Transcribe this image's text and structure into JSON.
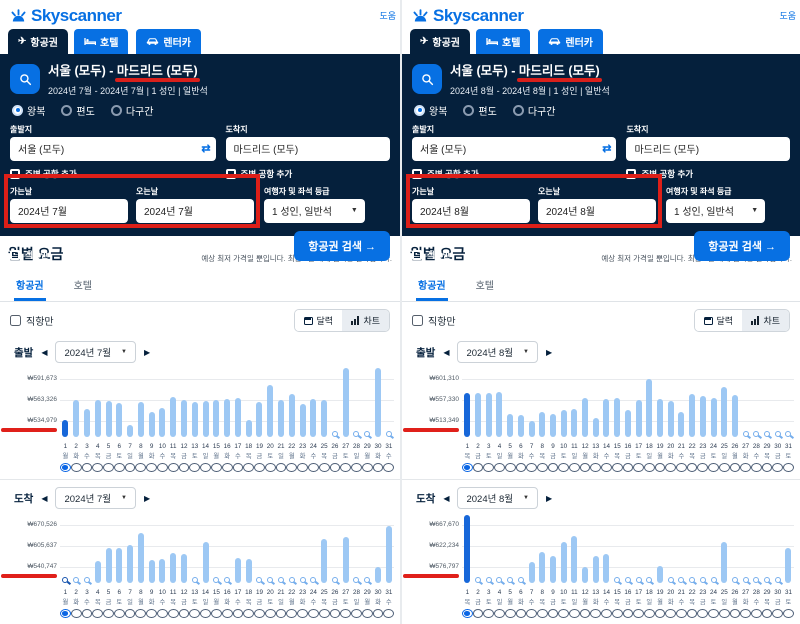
{
  "colors": {
    "brand_blue": "#0770e3",
    "navy": "#05203c",
    "bar_light": "#9dc8f4",
    "bar_selected": "#1767d9",
    "annotation_red": "#dd1f18"
  },
  "panels": [
    {
      "logo_text": "Skyscanner",
      "help_link": "도움",
      "nav_tabs": [
        {
          "label": "항공권"
        },
        {
          "label": "호텔"
        },
        {
          "label": "렌터카"
        }
      ],
      "summary_route_prefix": "서울 (모두) - ",
      "summary_route_highlight": "마드리드 (모두)",
      "summary_details": "2024년 7월 - 2024년 7월 | 1 성인 | 일반석",
      "trip_types": [
        "왕복",
        "편도",
        "다구간"
      ],
      "origin_label": "출발지",
      "origin_value": "서울 (모두)",
      "dest_label": "도착지",
      "dest_value": "마드리드 (모두)",
      "nearby_airports_label": "주변 공항 추가",
      "depart_label": "가는날",
      "depart_value": "2024년 7월",
      "return_label": "오는날",
      "return_value": "2024년 7월",
      "traveler_label": "여행자 및 좌석 등급",
      "traveler_value": "1 성인, 일반석",
      "direct_only_label": "직항만",
      "search_button_label": "항공권 검색 →",
      "monthly_title": "월별 요금",
      "monthly_subtitle": "예상 최저 가격일 뿐입니다. 최근 4일 내에 검색한 결과입니다.",
      "monthly_tabs": [
        "항공권",
        "호텔"
      ],
      "calendar_button_label": "달력",
      "chart_button_label": "차트"
    },
    {
      "logo_text": "Skyscanner",
      "help_link": "도움",
      "nav_tabs": [
        {
          "label": "항공권"
        },
        {
          "label": "호텔"
        },
        {
          "label": "렌터카"
        }
      ],
      "summary_route_prefix": "서울 (모두) - ",
      "summary_route_highlight": "마드리드 (모두)",
      "summary_details": "2024년 8월 - 2024년 8월 | 1 성인 | 일반석",
      "trip_types": [
        "왕복",
        "편도",
        "다구간"
      ],
      "origin_label": "출발지",
      "origin_value": "서울 (모두)",
      "dest_label": "도착지",
      "dest_value": "마드리드 (모두)",
      "nearby_airports_label": "주변 공항 추가",
      "depart_label": "가는날",
      "depart_value": "2024년 8월",
      "return_label": "오는날",
      "return_value": "2024년 8월",
      "traveler_label": "여행자 및 좌석 등급",
      "traveler_value": "1 성인, 일반석",
      "direct_only_label": "직항만",
      "search_button_label": "항공권 검색 →",
      "monthly_title": "월별 요금",
      "monthly_subtitle": "예상 최저 가격일 뿐입니다. 최근 4일 내에 검색한 결과입니다.",
      "monthly_tabs": [
        "항공권",
        "호텔"
      ],
      "calendar_button_label": "달력",
      "chart_button_label": "차트"
    }
  ],
  "chart_data": [
    {
      "type": "bar",
      "section_label": "출발",
      "month_value": "2024년 7월",
      "tick_labels": [
        "₩591,673",
        "₩563,326",
        "₩534,979"
      ],
      "ticks": [
        591673,
        563326,
        534979
      ],
      "min_label_annotated": true,
      "selected_index": 0,
      "weekdays": [
        "월",
        "화",
        "수",
        "목",
        "금",
        "토",
        "일",
        "월",
        "화",
        "수",
        "목",
        "금",
        "토",
        "일",
        "월",
        "화",
        "수",
        "목",
        "금",
        "토",
        "일",
        "월",
        "화",
        "수",
        "목",
        "금",
        "토",
        "일",
        "월",
        "화",
        "수"
      ],
      "values": [
        537000,
        564000,
        551000,
        564000,
        562000,
        559000,
        529000,
        560000,
        547000,
        552000,
        568000,
        563000,
        561000,
        562000,
        563000,
        565000,
        566000,
        536000,
        561000,
        584000,
        564000,
        571000,
        558000,
        565000,
        563000,
        null,
        640000,
        null,
        null,
        645000,
        null
      ]
    },
    {
      "type": "bar",
      "section_label": "도착",
      "month_value": "2024년 7월",
      "tick_labels": [
        "₩670,526",
        "₩605,637",
        "₩540,747"
      ],
      "ticks": [
        670526,
        605637,
        540747
      ],
      "min_label_annotated": true,
      "selected_index": 0,
      "weekdays": [
        "월",
        "화",
        "수",
        "목",
        "금",
        "토",
        "일",
        "월",
        "화",
        "수",
        "목",
        "금",
        "토",
        "일",
        "월",
        "화",
        "수",
        "목",
        "금",
        "토",
        "일",
        "월",
        "화",
        "수",
        "목",
        "금",
        "토",
        "일",
        "월",
        "화",
        "수"
      ],
      "values": [
        null,
        null,
        null,
        558000,
        598000,
        600000,
        610000,
        647000,
        561000,
        566000,
        584000,
        581000,
        null,
        618000,
        null,
        null,
        569000,
        566000,
        null,
        null,
        null,
        null,
        null,
        null,
        627000,
        null,
        632000,
        null,
        null,
        541000,
        668000
      ]
    },
    {
      "type": "bar",
      "section_label": "출발",
      "month_value": "2024년 8월",
      "tick_labels": [
        "₩601,310",
        "₩557,330",
        "₩513,349"
      ],
      "ticks": [
        601310,
        557330,
        513349
      ],
      "min_label_annotated": true,
      "selected_index": 0,
      "weekdays": [
        "목",
        "금",
        "토",
        "일",
        "월",
        "화",
        "수",
        "목",
        "금",
        "토",
        "일",
        "월",
        "화",
        "수",
        "목",
        "금",
        "토",
        "일",
        "월",
        "화",
        "수",
        "목",
        "금",
        "토",
        "일",
        "월",
        "화",
        "수",
        "목",
        "금",
        "토"
      ],
      "values": [
        573000,
        571000,
        573000,
        575000,
        528000,
        526000,
        514000,
        533000,
        528000,
        537000,
        539000,
        562000,
        520000,
        560000,
        562000,
        537000,
        558000,
        601000,
        560000,
        556000,
        533000,
        569000,
        565000,
        562000,
        584000,
        567000,
        null,
        null,
        null,
        null,
        null
      ]
    },
    {
      "type": "bar",
      "section_label": "도착",
      "month_value": "2024년 8월",
      "tick_labels": [
        "₩667,670",
        "₩622,234",
        "₩576,797"
      ],
      "ticks": [
        667670,
        622234,
        576797
      ],
      "min_label_annotated": true,
      "selected_index": 0,
      "weekdays": [
        "목",
        "금",
        "토",
        "일",
        "월",
        "화",
        "수",
        "목",
        "금",
        "토",
        "일",
        "월",
        "화",
        "수",
        "목",
        "금",
        "토",
        "일",
        "월",
        "화",
        "수",
        "목",
        "금",
        "토",
        "일",
        "월",
        "화",
        "수",
        "목",
        "금",
        "토"
      ],
      "values": [
        690000,
        null,
        null,
        null,
        null,
        null,
        587000,
        609000,
        600000,
        630000,
        644000,
        577000,
        600000,
        604000,
        null,
        null,
        null,
        null,
        579000,
        null,
        null,
        null,
        null,
        null,
        630000,
        null,
        null,
        null,
        null,
        null,
        619000
      ]
    }
  ]
}
